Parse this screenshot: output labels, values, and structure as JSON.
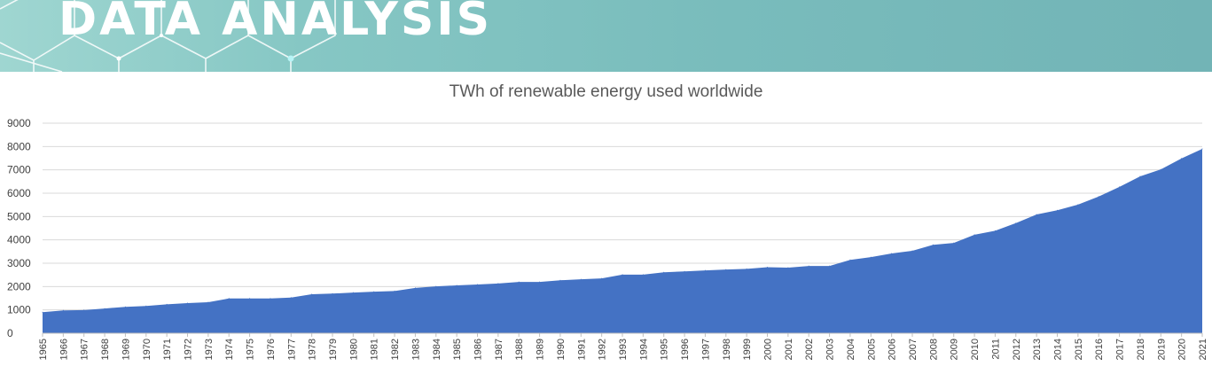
{
  "banner": {
    "title": "DATA ANALYSIS"
  },
  "colors": {
    "banner_bg": "#80c2c0",
    "area_fill": "#4472c4",
    "grid": "#d9d9d9",
    "axis_text": "#404040"
  },
  "chart_data": {
    "type": "area",
    "title": "TWh of renewable energy used worldwide",
    "xlabel": "",
    "ylabel": "",
    "ylim": [
      0,
      9000
    ],
    "yticks": [
      0,
      1000,
      2000,
      3000,
      4000,
      5000,
      6000,
      7000,
      8000,
      9000
    ],
    "grid": true,
    "legend": "none",
    "x": [
      "1965",
      "1966",
      "1967",
      "1968",
      "1969",
      "1970",
      "1971",
      "1972",
      "1973",
      "1974",
      "1975",
      "1976",
      "1977",
      "1978",
      "1979",
      "1980",
      "1981",
      "1982",
      "1983",
      "1984",
      "1985",
      "1986",
      "1987",
      "1988",
      "1989",
      "1990",
      "1991",
      "1992",
      "1993",
      "1994",
      "1995",
      "1996",
      "1997",
      "1998",
      "1999",
      "2000",
      "2001",
      "2002",
      "2003",
      "2004",
      "2005",
      "2006",
      "2007",
      "2008",
      "2009",
      "2010",
      "2011",
      "2012",
      "2013",
      "2014",
      "2015",
      "2016",
      "2017",
      "2018",
      "2019",
      "2020",
      "2021"
    ],
    "series": [
      {
        "values": [
          900,
          980,
          990,
          1060,
          1130,
          1170,
          1240,
          1290,
          1330,
          1490,
          1490,
          1490,
          1530,
          1670,
          1700,
          1740,
          1780,
          1810,
          1940,
          2010,
          2050,
          2090,
          2130,
          2200,
          2200,
          2270,
          2310,
          2350,
          2510,
          2510,
          2610,
          2650,
          2690,
          2730,
          2760,
          2830,
          2810,
          2880,
          2880,
          3140,
          3260,
          3420,
          3530,
          3790,
          3870,
          4220,
          4390,
          4720,
          5090,
          5270,
          5510,
          5860,
          6270,
          6720,
          7020,
          7490,
          7900
        ]
      }
    ]
  }
}
